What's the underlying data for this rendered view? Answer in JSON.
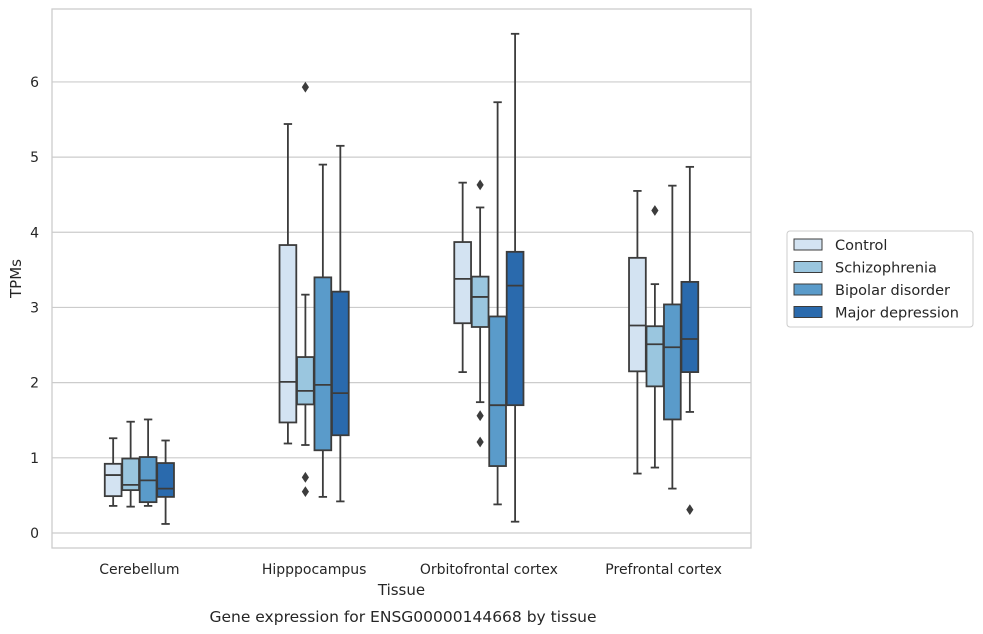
{
  "caption": "Gene expression for ENSG00000144668 by tissue",
  "chart_data": {
    "type": "box",
    "xlabel": "Tissue",
    "ylabel": "TPMs",
    "ylim": [
      -0.2,
      6.97
    ],
    "yticks": [
      0,
      1,
      2,
      3,
      4,
      5,
      6
    ],
    "grid": "horizontal",
    "legend_position": "right",
    "categories": [
      "Cerebellum",
      "Hipppocampus",
      "Orbitofrontal cortex",
      "Prefrontal cortex"
    ],
    "series": [
      {
        "name": "Control",
        "color": "#d3e3f2",
        "boxes": [
          {
            "whisker_low": 0.36,
            "q1": 0.49,
            "median": 0.77,
            "q3": 0.92,
            "whisker_high": 1.26,
            "outliers": []
          },
          {
            "whisker_low": 1.19,
            "q1": 1.47,
            "median": 2.01,
            "q3": 3.83,
            "whisker_high": 5.44,
            "outliers": []
          },
          {
            "whisker_low": 2.14,
            "q1": 2.79,
            "median": 3.38,
            "q3": 3.87,
            "whisker_high": 4.66,
            "outliers": []
          },
          {
            "whisker_low": 0.79,
            "q1": 2.15,
            "median": 2.76,
            "q3": 3.66,
            "whisker_high": 4.55,
            "outliers": []
          }
        ]
      },
      {
        "name": "Schizophrenia",
        "color": "#9ac6df",
        "boxes": [
          {
            "whisker_low": 0.35,
            "q1": 0.57,
            "median": 0.64,
            "q3": 0.99,
            "whisker_high": 1.48,
            "outliers": []
          },
          {
            "whisker_low": 1.17,
            "q1": 1.71,
            "median": 1.89,
            "q3": 2.34,
            "whisker_high": 3.17,
            "outliers": [
              0.55,
              0.74,
              5.93
            ]
          },
          {
            "whisker_low": 1.74,
            "q1": 2.74,
            "median": 3.14,
            "q3": 3.41,
            "whisker_high": 4.33,
            "outliers": [
              1.21,
              1.56,
              4.63
            ]
          },
          {
            "whisker_low": 0.87,
            "q1": 1.95,
            "median": 2.51,
            "q3": 2.75,
            "whisker_high": 3.31,
            "outliers": [
              4.29
            ]
          }
        ]
      },
      {
        "name": "Bipolar disorder",
        "color": "#5a9bca",
        "boxes": [
          {
            "whisker_low": 0.36,
            "q1": 0.41,
            "median": 0.7,
            "q3": 1.01,
            "whisker_high": 1.51,
            "outliers": []
          },
          {
            "whisker_low": 0.48,
            "q1": 1.1,
            "median": 1.97,
            "q3": 3.4,
            "whisker_high": 4.9,
            "outliers": []
          },
          {
            "whisker_low": 0.38,
            "q1": 0.89,
            "median": 1.7,
            "q3": 2.88,
            "whisker_high": 5.73,
            "outliers": []
          },
          {
            "whisker_low": 0.59,
            "q1": 1.51,
            "median": 2.47,
            "q3": 3.04,
            "whisker_high": 4.62,
            "outliers": []
          }
        ]
      },
      {
        "name": "Major depression",
        "color": "#2a6aad",
        "boxes": [
          {
            "whisker_low": 0.12,
            "q1": 0.48,
            "median": 0.59,
            "q3": 0.93,
            "whisker_high": 1.23,
            "outliers": []
          },
          {
            "whisker_low": 0.42,
            "q1": 1.3,
            "median": 1.86,
            "q3": 3.21,
            "whisker_high": 5.15,
            "outliers": []
          },
          {
            "whisker_low": 0.15,
            "q1": 1.7,
            "median": 3.29,
            "q3": 3.74,
            "whisker_high": 6.64,
            "outliers": []
          },
          {
            "whisker_low": 1.61,
            "q1": 2.14,
            "median": 2.58,
            "q3": 3.34,
            "whisker_high": 4.87,
            "outliers": [
              0.31
            ]
          }
        ]
      }
    ]
  },
  "colors": {
    "edge": "#3c3c3c",
    "grid": "#cccccc",
    "frame": "#cccccc",
    "background": "#ffffff"
  }
}
